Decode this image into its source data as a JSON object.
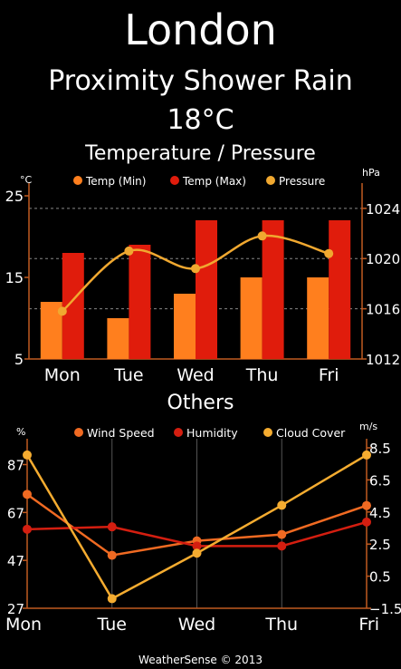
{
  "header": {
    "city": "London",
    "condition": "Proximity Shower Rain",
    "temperature": "18°C"
  },
  "sections": {
    "temp_pressure_title": "Temperature / Pressure",
    "others_title": "Others"
  },
  "footer": {
    "text": "WeatherSense © 2013"
  },
  "colors": {
    "temp_min": "#ff7f1e",
    "temp_max": "#e01c0c",
    "pressure": "#f0a830",
    "wind": "#f06a22",
    "humidity": "#d41e10",
    "cloud": "#f5ac30",
    "axis": "#c05a20",
    "grid": "#888888"
  },
  "chart_data": [
    {
      "type": "bar",
      "title": "Temperature / Pressure",
      "categories": [
        "Mon",
        "Tue",
        "Wed",
        "Thu",
        "Fri"
      ],
      "y_unit": "°C",
      "y2_unit": "hPa",
      "ylim": [
        5,
        25
      ],
      "y_ticks": [
        5,
        15,
        25
      ],
      "y2lim": [
        1012,
        1025
      ],
      "y2_ticks": [
        1012,
        1016,
        1020,
        1024
      ],
      "series": [
        {
          "name": "Temp (Min)",
          "kind": "bar",
          "axis": "left",
          "values": [
            12,
            10,
            13,
            15,
            15
          ]
        },
        {
          "name": "Temp (Max)",
          "kind": "bar",
          "axis": "left",
          "values": [
            18,
            19,
            22,
            22,
            22
          ]
        },
        {
          "name": "Pressure",
          "kind": "line",
          "axis": "right",
          "values": [
            1015.8,
            1020.6,
            1019.2,
            1021.8,
            1020.4
          ]
        }
      ],
      "legend": "top"
    },
    {
      "type": "line",
      "title": "Others",
      "categories": [
        "Mon",
        "Tue",
        "Wed",
        "Thu",
        "Fri"
      ],
      "y_unit": "%",
      "y2_unit": "m/s",
      "ylim": [
        27,
        94
      ],
      "y_ticks": [
        27,
        47,
        67,
        87
      ],
      "y2lim": [
        -1.5,
        8.5
      ],
      "y2_ticks": [
        -1.5,
        0.5,
        2.5,
        4.5,
        6.5,
        8.5
      ],
      "series": [
        {
          "name": "Wind Speed",
          "axis": "right",
          "values": [
            5.6,
            1.8,
            2.7,
            3.1,
            4.9
          ]
        },
        {
          "name": "Humidity",
          "axis": "left",
          "values": [
            60,
            61,
            53,
            53,
            63
          ]
        },
        {
          "name": "Cloud Cover",
          "axis": "left",
          "values": [
            91,
            31,
            50,
            70,
            91
          ]
        }
      ],
      "legend": "top"
    }
  ]
}
